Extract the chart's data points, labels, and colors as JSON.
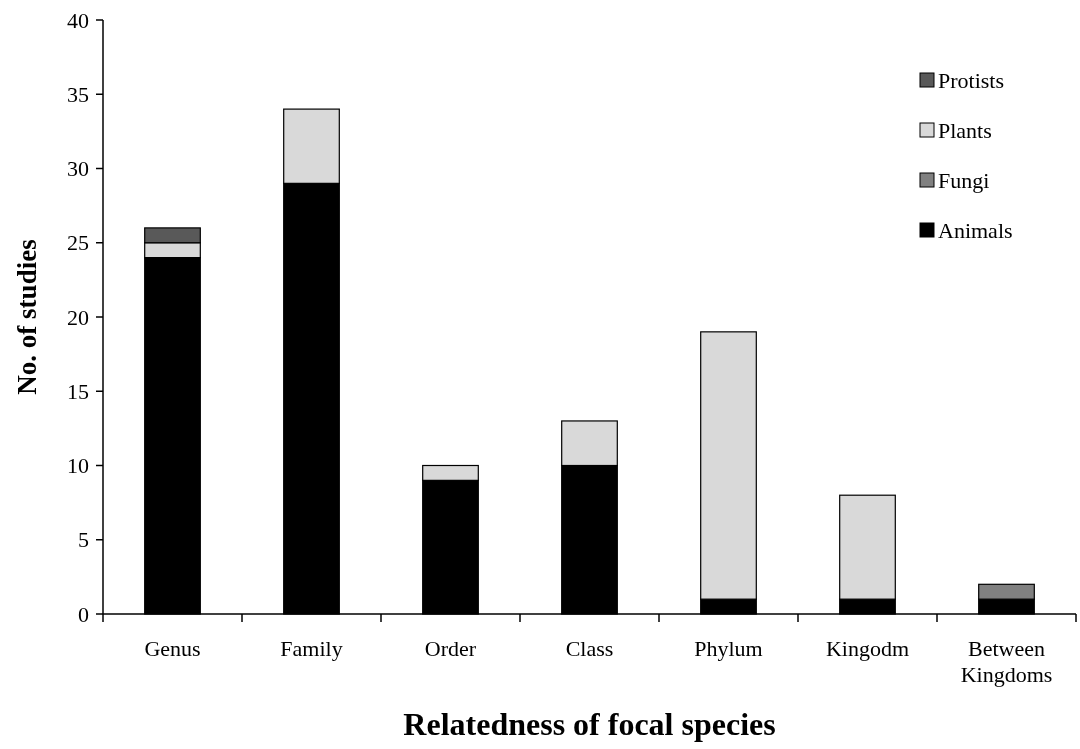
{
  "chart_data": {
    "type": "bar",
    "stacked": true,
    "xlabel": "Relatedness of focal species",
    "ylabel": "No. of studies",
    "categories": [
      "Genus",
      "Family",
      "Order",
      "Class",
      "Phylum",
      "Kingodm",
      "Between Kingdoms"
    ],
    "series": [
      {
        "name": "Animals",
        "color": "#000000",
        "values": [
          24,
          29,
          9,
          10,
          1,
          1,
          1
        ]
      },
      {
        "name": "Fungi",
        "color": "#808080",
        "values": [
          0,
          0,
          0,
          0,
          0,
          0,
          1
        ]
      },
      {
        "name": "Plants",
        "color": "#d9d9d9",
        "values": [
          1,
          5,
          1,
          3,
          18,
          7,
          0
        ]
      },
      {
        "name": "Protists",
        "color": "#595959",
        "values": [
          1,
          0,
          0,
          0,
          0,
          0,
          0
        ]
      }
    ],
    "ylim": [
      0,
      40
    ],
    "yticks": [
      0,
      5,
      10,
      15,
      20,
      25,
      30,
      35,
      40
    ],
    "legend": "top right",
    "grid": false
  }
}
